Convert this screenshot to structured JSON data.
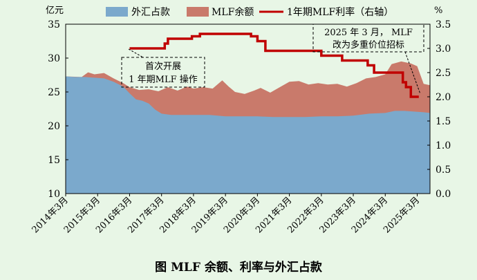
{
  "chart_data": {
    "type": "area",
    "caption": "图 MLF 余额、利率与外汇占款",
    "left_unit": "亿元",
    "right_unit": "%",
    "x_tick_labels": [
      "2014年3月",
      "2015年3月",
      "2016年3月",
      "2017年3月",
      "2018年3月",
      "2019年3月",
      "2020年3月",
      "2021年3月",
      "2022年3月",
      "2023年3月",
      "2024年3月",
      "2025年3月"
    ],
    "x_range": [
      2014.0,
      2025.4
    ],
    "ylim_left": [
      10,
      35
    ],
    "yticks_left": [
      "10",
      "15",
      "20",
      "25",
      "30",
      "35"
    ],
    "ylim_right": [
      0,
      3.5
    ],
    "yticks_right": [
      "0.0",
      "0.5",
      "1.0",
      "1.5",
      "2.0",
      "2.5",
      "3.0",
      "3.5"
    ],
    "legend_position": "top",
    "grid": false,
    "colors": {
      "fx": "#7ba9cc",
      "mlf": "#c97a6b",
      "rate": "#c00000",
      "background": "#e8f6e6"
    },
    "series": [
      {
        "name": "外汇占款",
        "axis": "left",
        "kind": "area",
        "x": [
          2014.0,
          2014.3,
          2014.6,
          2014.9,
          2015.2,
          2015.5,
          2015.8,
          2016.0,
          2016.2,
          2016.4,
          2016.6,
          2016.8,
          2017.0,
          2017.3,
          2017.6,
          2018.0,
          2018.5,
          2019.0,
          2019.5,
          2020.0,
          2020.5,
          2021.0,
          2021.5,
          2022.0,
          2022.5,
          2023.0,
          2023.5,
          2024.0,
          2024.3,
          2024.6,
          2024.9,
          2025.2,
          2025.4
        ],
        "values": [
          27.3,
          27.2,
          27.2,
          27.1,
          27.0,
          26.5,
          25.8,
          24.8,
          23.9,
          23.7,
          23.3,
          22.4,
          21.8,
          21.6,
          21.6,
          21.6,
          21.6,
          21.4,
          21.4,
          21.4,
          21.3,
          21.3,
          21.3,
          21.4,
          21.4,
          21.5,
          21.8,
          21.9,
          22.2,
          22.2,
          22.1,
          22.0,
          21.9
        ]
      },
      {
        "name": "MLF余额",
        "axis": "left",
        "kind": "area",
        "x": [
          2014.0,
          2014.5,
          2014.7,
          2014.9,
          2015.2,
          2015.5,
          2015.8,
          2016.0,
          2016.3,
          2016.6,
          2016.9,
          2017.2,
          2017.5,
          2017.8,
          2018.0,
          2018.3,
          2018.6,
          2018.9,
          2019.1,
          2019.3,
          2019.6,
          2019.9,
          2020.1,
          2020.4,
          2020.7,
          2021.0,
          2021.3,
          2021.6,
          2021.9,
          2022.2,
          2022.5,
          2022.8,
          2023.1,
          2023.4,
          2023.7,
          2024.0,
          2024.2,
          2024.5,
          2024.8,
          2025.0,
          2025.2,
          2025.4
        ],
        "values": [
          27.3,
          27.2,
          27.9,
          27.6,
          27.8,
          27.0,
          26.3,
          25.7,
          25.3,
          25.4,
          25.1,
          25.7,
          25.2,
          25.8,
          25.5,
          25.7,
          25.5,
          26.7,
          25.8,
          25.0,
          24.7,
          25.2,
          25.6,
          24.9,
          25.7,
          26.5,
          26.6,
          26.1,
          26.3,
          26.1,
          26.2,
          25.8,
          26.3,
          27.0,
          27.2,
          27.6,
          29.1,
          29.5,
          29.2,
          28.8,
          26.2,
          26.0
        ]
      },
      {
        "name": "1年期MLF利率（右轴）",
        "axis": "right",
        "kind": "step",
        "x": [
          2016.0,
          2016.58,
          2016.58,
          2016.7,
          2016.7,
          2017.1,
          2017.1,
          2017.2,
          2017.2,
          2017.95,
          2017.95,
          2018.2,
          2018.2,
          2019.8,
          2019.8,
          2020.0,
          2020.0,
          2020.25,
          2020.25,
          2022.0,
          2022.0,
          2022.65,
          2022.65,
          2023.45,
          2023.45,
          2023.65,
          2023.65,
          2024.55,
          2024.55,
          2024.65,
          2024.65,
          2024.8,
          2024.8,
          2025.05
        ],
        "values": [
          3.0,
          3.0,
          3.0,
          3.0,
          3.0,
          3.0,
          3.1,
          3.1,
          3.2,
          3.2,
          3.25,
          3.25,
          3.3,
          3.3,
          3.25,
          3.25,
          3.15,
          3.15,
          2.95,
          2.95,
          2.85,
          2.85,
          2.75,
          2.75,
          2.65,
          2.65,
          2.5,
          2.5,
          2.3,
          2.3,
          2.2,
          2.2,
          2.0,
          2.0
        ]
      }
    ],
    "annotations": [
      {
        "id": "first",
        "text": [
          "首次开展",
          "1 年期MLF 操作"
        ]
      },
      {
        "id": "last",
        "text": [
          "2025 年 3 月， MLF",
          "改为多重价位招标"
        ]
      }
    ]
  }
}
